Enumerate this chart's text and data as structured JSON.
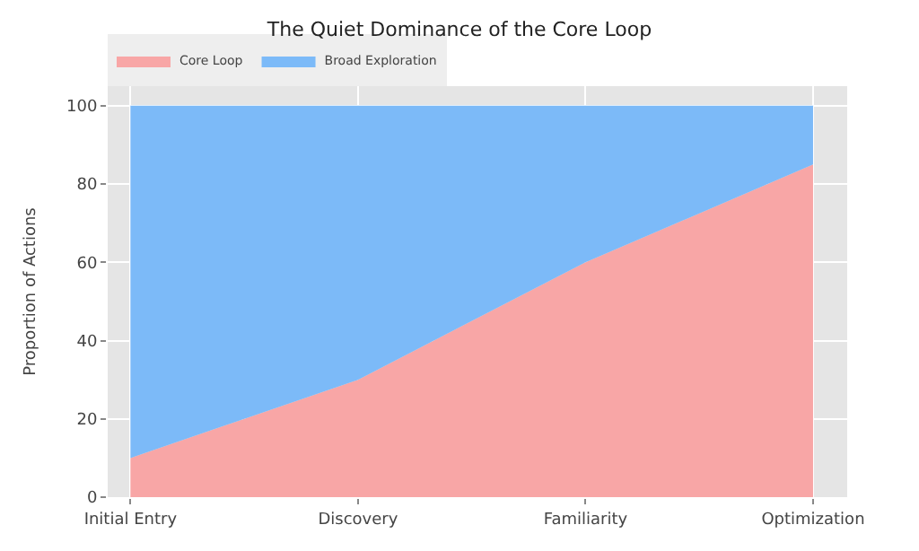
{
  "chart_data": {
    "type": "area",
    "stacked": true,
    "title": "The Quiet Dominance of the Core Loop",
    "ylabel": "Proportion of Actions",
    "categories": [
      "Initial Entry",
      "Discovery",
      "Familiarity",
      "Optimization"
    ],
    "series": [
      {
        "name": "Core Loop",
        "color": "#f8a6a6",
        "values": [
          10,
          30,
          60,
          85
        ]
      },
      {
        "name": "Broad Exploration",
        "color": "#7cbaf8",
        "values": [
          90,
          70,
          40,
          15
        ]
      }
    ],
    "ylim": [
      0,
      105
    ],
    "yticks": [
      0,
      20,
      40,
      60,
      80,
      100
    ],
    "grid": true,
    "legend": "top left"
  }
}
